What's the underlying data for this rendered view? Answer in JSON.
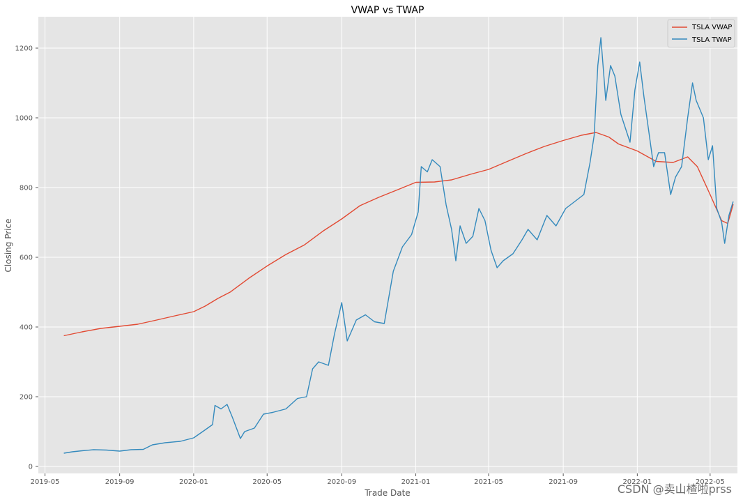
{
  "chart_data": {
    "type": "line",
    "title": "VWAP vs TWAP",
    "xlabel": "Trade Date",
    "ylabel": "Closing Price",
    "x_ticks": [
      "2019-05",
      "2019-09",
      "2020-01",
      "2020-05",
      "2020-09",
      "2021-01",
      "2021-05",
      "2021-09",
      "2022-01",
      "2022-05"
    ],
    "y_ticks": [
      0,
      200,
      400,
      600,
      800,
      1000,
      1200
    ],
    "xlim": [
      "2019-04-20",
      "2022-06-15"
    ],
    "ylim": [
      -20,
      1290
    ],
    "grid": true,
    "legend_position": "top-right",
    "series": [
      {
        "name": "TSLA VWAP",
        "color": "#E24A33",
        "points": [
          [
            "2019-06-01",
            375
          ],
          [
            "2019-07-01",
            386
          ],
          [
            "2019-08-01",
            396
          ],
          [
            "2019-09-01",
            402
          ],
          [
            "2019-10-01",
            408
          ],
          [
            "2019-11-01",
            420
          ],
          [
            "2019-12-01",
            432
          ],
          [
            "2020-01-01",
            444
          ],
          [
            "2020-01-20",
            460
          ],
          [
            "2020-02-10",
            482
          ],
          [
            "2020-03-01",
            500
          ],
          [
            "2020-04-01",
            540
          ],
          [
            "2020-05-01",
            575
          ],
          [
            "2020-06-01",
            608
          ],
          [
            "2020-07-01",
            635
          ],
          [
            "2020-08-01",
            675
          ],
          [
            "2020-09-01",
            710
          ],
          [
            "2020-10-01",
            748
          ],
          [
            "2020-11-01",
            772
          ],
          [
            "2020-12-01",
            793
          ],
          [
            "2021-01-01",
            815
          ],
          [
            "2021-02-01",
            816
          ],
          [
            "2021-03-01",
            822
          ],
          [
            "2021-04-01",
            838
          ],
          [
            "2021-05-01",
            852
          ],
          [
            "2021-06-01",
            875
          ],
          [
            "2021-07-01",
            897
          ],
          [
            "2021-08-01",
            918
          ],
          [
            "2021-09-01",
            935
          ],
          [
            "2021-10-01",
            950
          ],
          [
            "2021-10-25",
            958
          ],
          [
            "2021-11-15",
            945
          ],
          [
            "2021-12-01",
            925
          ],
          [
            "2022-01-01",
            905
          ],
          [
            "2022-02-01",
            875
          ],
          [
            "2022-03-01",
            872
          ],
          [
            "2022-03-25",
            888
          ],
          [
            "2022-04-10",
            860
          ],
          [
            "2022-05-01",
            780
          ],
          [
            "2022-05-20",
            705
          ],
          [
            "2022-05-30",
            697
          ],
          [
            "2022-06-08",
            752
          ]
        ]
      },
      {
        "name": "TSLA TWAP",
        "color": "#348ABD",
        "points": [
          [
            "2019-06-01",
            38
          ],
          [
            "2019-06-15",
            42
          ],
          [
            "2019-07-01",
            45
          ],
          [
            "2019-07-20",
            48
          ],
          [
            "2019-08-10",
            47
          ],
          [
            "2019-09-01",
            44
          ],
          [
            "2019-09-20",
            48
          ],
          [
            "2019-10-10",
            49
          ],
          [
            "2019-10-25",
            62
          ],
          [
            "2019-11-15",
            68
          ],
          [
            "2019-12-10",
            72
          ],
          [
            "2020-01-01",
            82
          ],
          [
            "2020-01-20",
            105
          ],
          [
            "2020-02-01",
            120
          ],
          [
            "2020-02-05",
            175
          ],
          [
            "2020-02-15",
            165
          ],
          [
            "2020-02-25",
            178
          ],
          [
            "2020-03-05",
            140
          ],
          [
            "2020-03-18",
            80
          ],
          [
            "2020-03-25",
            100
          ],
          [
            "2020-04-10",
            110
          ],
          [
            "2020-04-25",
            150
          ],
          [
            "2020-05-10",
            155
          ],
          [
            "2020-06-01",
            165
          ],
          [
            "2020-06-20",
            195
          ],
          [
            "2020-07-05",
            200
          ],
          [
            "2020-07-15",
            280
          ],
          [
            "2020-07-25",
            300
          ],
          [
            "2020-08-10",
            290
          ],
          [
            "2020-08-20",
            380
          ],
          [
            "2020-09-01",
            470
          ],
          [
            "2020-09-10",
            360
          ],
          [
            "2020-09-25",
            420
          ],
          [
            "2020-10-10",
            435
          ],
          [
            "2020-10-25",
            415
          ],
          [
            "2020-11-10",
            410
          ],
          [
            "2020-11-25",
            560
          ],
          [
            "2020-12-10",
            630
          ],
          [
            "2020-12-25",
            665
          ],
          [
            "2021-01-05",
            730
          ],
          [
            "2021-01-10",
            860
          ],
          [
            "2021-01-20",
            845
          ],
          [
            "2021-01-28",
            880
          ],
          [
            "2021-02-10",
            860
          ],
          [
            "2021-02-20",
            750
          ],
          [
            "2021-03-01",
            680
          ],
          [
            "2021-03-08",
            590
          ],
          [
            "2021-03-15",
            690
          ],
          [
            "2021-03-25",
            640
          ],
          [
            "2021-04-05",
            660
          ],
          [
            "2021-04-15",
            740
          ],
          [
            "2021-04-25",
            705
          ],
          [
            "2021-05-05",
            620
          ],
          [
            "2021-05-15",
            570
          ],
          [
            "2021-05-25",
            590
          ],
          [
            "2021-06-10",
            610
          ],
          [
            "2021-06-25",
            650
          ],
          [
            "2021-07-05",
            680
          ],
          [
            "2021-07-20",
            650
          ],
          [
            "2021-08-05",
            720
          ],
          [
            "2021-08-20",
            690
          ],
          [
            "2021-09-05",
            740
          ],
          [
            "2021-09-20",
            760
          ],
          [
            "2021-10-05",
            780
          ],
          [
            "2021-10-15",
            870
          ],
          [
            "2021-10-22",
            950
          ],
          [
            "2021-10-28",
            1150
          ],
          [
            "2021-11-02",
            1230
          ],
          [
            "2021-11-10",
            1050
          ],
          [
            "2021-11-18",
            1150
          ],
          [
            "2021-11-25",
            1120
          ],
          [
            "2021-12-05",
            1010
          ],
          [
            "2021-12-20",
            930
          ],
          [
            "2021-12-28",
            1080
          ],
          [
            "2022-01-05",
            1160
          ],
          [
            "2022-01-12",
            1060
          ],
          [
            "2022-01-20",
            960
          ],
          [
            "2022-01-28",
            860
          ],
          [
            "2022-02-05",
            900
          ],
          [
            "2022-02-15",
            900
          ],
          [
            "2022-02-25",
            780
          ],
          [
            "2022-03-05",
            830
          ],
          [
            "2022-03-15",
            860
          ],
          [
            "2022-03-25",
            1000
          ],
          [
            "2022-04-02",
            1100
          ],
          [
            "2022-04-08",
            1050
          ],
          [
            "2022-04-20",
            1000
          ],
          [
            "2022-04-28",
            880
          ],
          [
            "2022-05-05",
            920
          ],
          [
            "2022-05-12",
            740
          ],
          [
            "2022-05-20",
            700
          ],
          [
            "2022-05-25",
            640
          ],
          [
            "2022-06-01",
            720
          ],
          [
            "2022-06-08",
            760
          ]
        ]
      }
    ]
  },
  "watermark": "CSDN @卖山楂啦prss"
}
